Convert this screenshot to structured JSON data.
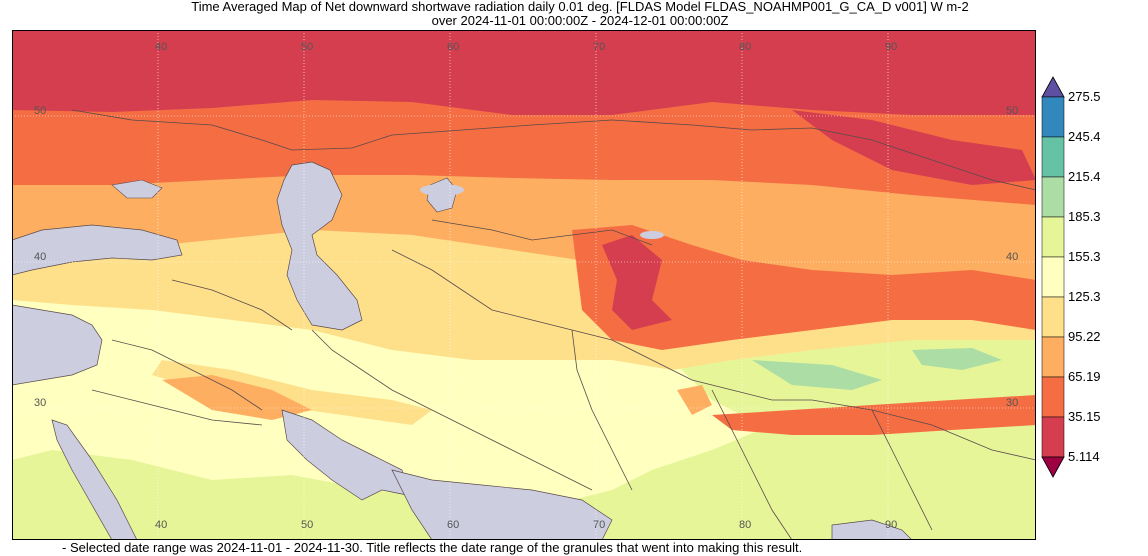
{
  "title": {
    "line1": "Time Averaged Map of Net downward shortwave radiation daily 0.01 deg. [FLDAS Model FLDAS_NOAHMP001_G_CA_D v001] W m-2",
    "line2": "over 2024-11-01 00:00:00Z - 2024-12-01 00:00:00Z"
  },
  "map": {
    "lon_labels_top": [
      "40",
      "50",
      "60",
      "70",
      "80",
      "90"
    ],
    "lon_labels_bottom": [
      "40",
      "50",
      "60",
      "70",
      "80",
      "90"
    ],
    "lat_labels_left": [
      "50",
      "40",
      "30"
    ],
    "lat_labels_right": [
      "50",
      "40",
      "30"
    ],
    "colors": {
      "land_nodata": "#cdcde0",
      "band_5": "#d53e4f",
      "band_35": "#f46d43",
      "band_65": "#fdae61",
      "band_95": "#fee08b",
      "band_125": "#ffffbf",
      "band_155": "#e6f598",
      "band_185": "#abdda4",
      "band_215": "#66c2a5",
      "band_245": "#3288bd",
      "border": "#5a4a4a",
      "grid": "#ffffff"
    }
  },
  "legend": {
    "labels": [
      "275.5",
      "245.4",
      "215.4",
      "185.3",
      "155.3",
      "125.3",
      "95.22",
      "65.19",
      "35.15",
      "5.114"
    ],
    "colors": [
      "#3288bd",
      "#66c2a5",
      "#abdda4",
      "#e6f598",
      "#ffffbf",
      "#fee08b",
      "#fdae61",
      "#f46d43",
      "#d53e4f"
    ],
    "over_color": "#5e4fa2",
    "under_color": "#9e0142"
  },
  "footnote": "- Selected date range was 2024-11-01 - 2024-11-30. Title reflects the date range of the granules that went into making this result."
}
